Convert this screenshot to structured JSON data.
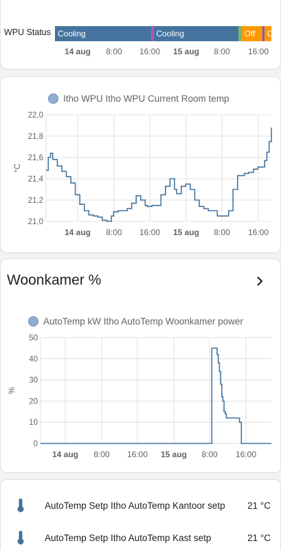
{
  "timeline": {
    "label": "WPU Status",
    "segments": [
      {
        "label": "Cooling",
        "color": "#44739e",
        "start": 0.0,
        "end": 0.447
      },
      {
        "label": "",
        "color": "#b054b8",
        "start": 0.447,
        "end": 0.455
      },
      {
        "label": "Cooling",
        "color": "#44739e",
        "start": 0.455,
        "end": 0.848
      },
      {
        "label": "",
        "color": "#7bb26a",
        "start": 0.848,
        "end": 0.862
      },
      {
        "label": "Off",
        "color": "#ff9800",
        "start": 0.862,
        "end": 0.958
      },
      {
        "label": "",
        "color": "#7c57c0",
        "start": 0.958,
        "end": 0.968
      },
      {
        "label": "Off",
        "color": "#ff9800",
        "start": 0.968,
        "end": 1.0
      }
    ],
    "ticks": [
      {
        "label": "14 aug",
        "bold": true
      },
      {
        "label": "8:00",
        "bold": false
      },
      {
        "label": "16:00",
        "bold": false
      },
      {
        "label": "15 aug",
        "bold": true
      },
      {
        "label": "8:00",
        "bold": false
      },
      {
        "label": "16:00",
        "bold": false
      }
    ]
  },
  "chart_data": [
    {
      "type": "line",
      "series": [
        {
          "name": "Itho WPU Itho WPU Current Room temp",
          "color": "#44739e"
        }
      ],
      "ylabel": "°C",
      "ylim": [
        21.0,
        22.0
      ],
      "yticks": [
        "22,0",
        "21,8",
        "21,6",
        "21,4",
        "21,2",
        "21,0"
      ],
      "xticks": [
        {
          "label": "14 aug",
          "bold": true
        },
        {
          "label": "8:00",
          "bold": false
        },
        {
          "label": "16:00",
          "bold": false
        },
        {
          "label": "15 aug",
          "bold": true
        },
        {
          "label": "8:00",
          "bold": false
        },
        {
          "label": "16:00",
          "bold": false
        }
      ],
      "x": [
        0,
        0.01,
        0.02,
        0.03,
        0.05,
        0.07,
        0.09,
        0.11,
        0.13,
        0.15,
        0.17,
        0.19,
        0.21,
        0.23,
        0.25,
        0.27,
        0.29,
        0.3,
        0.32,
        0.34,
        0.36,
        0.38,
        0.4,
        0.42,
        0.44,
        0.45,
        0.47,
        0.49,
        0.51,
        0.53,
        0.55,
        0.57,
        0.58,
        0.6,
        0.62,
        0.64,
        0.66,
        0.68,
        0.7,
        0.72,
        0.74,
        0.76,
        0.78,
        0.8,
        0.81,
        0.83,
        0.85,
        0.88,
        0.9,
        0.92,
        0.94,
        0.96,
        0.97,
        0.98,
        0.99,
        1.0
      ],
      "values": [
        21.48,
        21.6,
        21.64,
        21.58,
        21.52,
        21.47,
        21.42,
        21.36,
        21.25,
        21.16,
        21.1,
        21.06,
        21.05,
        21.04,
        21.01,
        21.0,
        21.05,
        21.09,
        21.1,
        21.1,
        21.12,
        21.17,
        21.24,
        21.2,
        21.15,
        21.14,
        21.15,
        21.15,
        21.25,
        21.33,
        21.4,
        21.3,
        21.26,
        21.33,
        21.35,
        21.3,
        21.2,
        21.14,
        21.12,
        21.1,
        21.1,
        21.05,
        21.05,
        21.05,
        21.1,
        21.3,
        21.43,
        21.45,
        21.46,
        21.49,
        21.51,
        21.51,
        21.57,
        21.65,
        21.75,
        21.88
      ]
    },
    {
      "type": "line",
      "series": [
        {
          "name": "AutoTemp kW Itho AutoTemp Woonkamer power",
          "color": "#44739e"
        }
      ],
      "ylabel": "%",
      "ylim": [
        0,
        50
      ],
      "yticks": [
        "50",
        "40",
        "30",
        "20",
        "10",
        "0"
      ],
      "xticks": [
        {
          "label": "14 aug",
          "bold": true
        },
        {
          "label": "8:00",
          "bold": false
        },
        {
          "label": "16:00",
          "bold": false
        },
        {
          "label": "15 aug",
          "bold": true
        },
        {
          "label": "8:00",
          "bold": false
        },
        {
          "label": "16:00",
          "bold": false
        }
      ],
      "x": [
        0,
        0.741,
        0.742,
        0.76,
        0.765,
        0.77,
        0.775,
        0.78,
        0.785,
        0.79,
        0.795,
        0.8,
        0.805,
        0.81,
        0.815,
        0.82,
        0.86,
        0.862,
        0.87,
        1.0
      ],
      "values": [
        0,
        0,
        45,
        45,
        42,
        38,
        34,
        28,
        22,
        20,
        15,
        14,
        12,
        12,
        12,
        12,
        12,
        10,
        0,
        0
      ]
    }
  ],
  "woonkamer": {
    "title": "Woonkamer %"
  },
  "entities": [
    {
      "name": "AutoTemp Setp Itho AutoTemp Kantoor setp",
      "value": "21 °C"
    },
    {
      "name": "AutoTemp Setp Itho AutoTemp Kast setp",
      "value": "21 °C"
    }
  ]
}
